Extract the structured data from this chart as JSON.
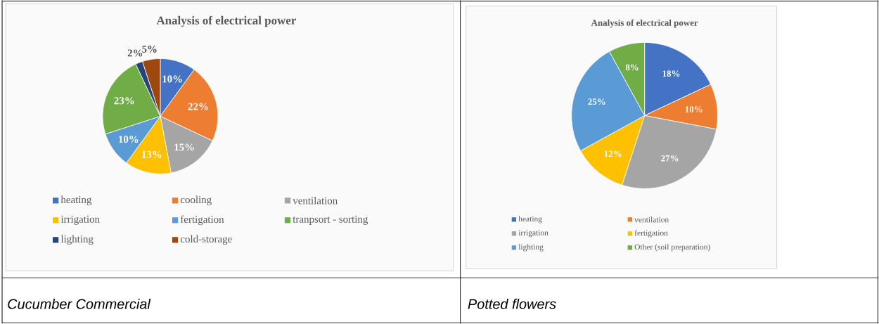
{
  "chart_data": [
    {
      "type": "pie",
      "title": "Analysis of electrical power",
      "categories": [
        "heating",
        "cooling",
        "ventilation",
        "irrigation",
        "fertigation",
        "tranpsort - sorting",
        "lighting",
        "cold-storage"
      ],
      "values": [
        10,
        22,
        15,
        13,
        10,
        23,
        2,
        5
      ],
      "colors": [
        "#4472c4",
        "#ed7d31",
        "#a5a5a5",
        "#ffc000",
        "#5b9bd5",
        "#70ad47",
        "#264478",
        "#9e480e"
      ],
      "value_labels": [
        "10%",
        "22%",
        "15%",
        "13%",
        "10%",
        "23%",
        "2%",
        "5%"
      ],
      "legend": "bottom",
      "annotations": [
        "Cucumber Commercial"
      ]
    },
    {
      "type": "pie",
      "title": "Analysis of electrical power",
      "categories": [
        "heating",
        "ventilation",
        "irrigation",
        "fertigation",
        "lighting",
        "Other (soil preparation)"
      ],
      "values": [
        18,
        10,
        27,
        12,
        25,
        8
      ],
      "colors": [
        "#4472c4",
        "#ed7d31",
        "#a5a5a5",
        "#ffc000",
        "#5b9bd5",
        "#70ad47"
      ],
      "value_labels": [
        "18%",
        "10%",
        "27%",
        "12%",
        "25%",
        "8%"
      ],
      "legend": "bottom",
      "annotations": [
        "Potted flowers"
      ]
    }
  ]
}
